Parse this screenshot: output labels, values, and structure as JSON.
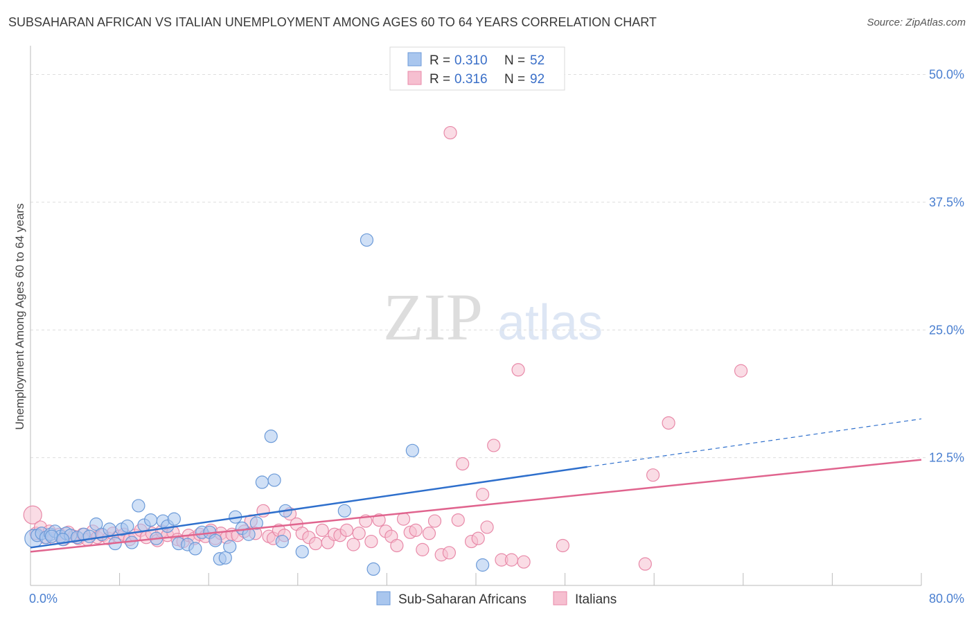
{
  "title": "SUBSAHARAN AFRICAN VS ITALIAN UNEMPLOYMENT AMONG AGES 60 TO 64 YEARS CORRELATION CHART",
  "source": "Source: ZipAtlas.com",
  "watermark": {
    "zip": "ZIP",
    "atlas": "atlas"
  },
  "colors": {
    "blue_fill": "#a9c6ee",
    "blue_stroke": "#6b9ad8",
    "blue_line": "#2e6fcc",
    "pink_fill": "#f6bfd0",
    "pink_stroke": "#e889a8",
    "pink_line": "#e0648e",
    "grid": "#dddddd",
    "axis": "#bbbbbb",
    "tick_text": "#4a7fd0"
  },
  "legend": {
    "rows": [
      {
        "r_label": "R = ",
        "r_value": "0.310",
        "n_label": "N = ",
        "n_value": "52"
      },
      {
        "r_label": "R = ",
        "r_value": "0.316",
        "n_label": "N = ",
        "n_value": "92"
      }
    ]
  },
  "chart_data": {
    "type": "scatter",
    "title": "SUBSAHARAN AFRICAN VS ITALIAN UNEMPLOYMENT AMONG AGES 60 TO 64 YEARS CORRELATION CHART",
    "xlabel": "",
    "ylabel": "Unemployment Among Ages 60 to 64 years",
    "xlim": [
      0,
      80
    ],
    "ylim": [
      0,
      52
    ],
    "x_tick_labels": [
      "0.0%",
      "80.0%"
    ],
    "y_ticks": [
      12.5,
      25.0,
      37.5,
      50.0
    ],
    "y_tick_labels": [
      "12.5%",
      "25.0%",
      "37.5%",
      "50.0%"
    ],
    "grid": true,
    "legend_position": "top-center",
    "series": [
      {
        "name": "Sub-Saharan Africans",
        "color": "#a9c6ee",
        "trend": {
          "x0": 0,
          "y0": 3.7,
          "x1": 50,
          "y1": 11.6,
          "dashed_to_x": 80,
          "dashed_to_y": 16.3
        },
        "points": [
          [
            0.3,
            4.6
          ],
          [
            0.6,
            4.9
          ],
          [
            1.0,
            5.1
          ],
          [
            1.4,
            4.7
          ],
          [
            1.8,
            5.0
          ],
          [
            2.2,
            5.3
          ],
          [
            2.7,
            4.8
          ],
          [
            3.2,
            5.1
          ],
          [
            3.6,
            4.9
          ],
          [
            4.2,
            4.7
          ],
          [
            4.8,
            5.0
          ],
          [
            5.3,
            4.8
          ],
          [
            5.9,
            6.0
          ],
          [
            6.4,
            5.0
          ],
          [
            7.1,
            5.5
          ],
          [
            7.6,
            4.1
          ],
          [
            8.2,
            5.5
          ],
          [
            8.7,
            5.8
          ],
          [
            9.1,
            4.2
          ],
          [
            9.7,
            7.8
          ],
          [
            10.2,
            5.9
          ],
          [
            10.8,
            6.4
          ],
          [
            11.3,
            4.6
          ],
          [
            11.9,
            6.3
          ],
          [
            12.3,
            5.8
          ],
          [
            12.9,
            6.5
          ],
          [
            13.3,
            4.1
          ],
          [
            14.1,
            4.0
          ],
          [
            14.8,
            3.6
          ],
          [
            15.4,
            5.2
          ],
          [
            16.1,
            5.2
          ],
          [
            16.6,
            4.4
          ],
          [
            17.0,
            2.6
          ],
          [
            17.5,
            2.7
          ],
          [
            17.9,
            3.8
          ],
          [
            18.4,
            6.7
          ],
          [
            19.0,
            5.6
          ],
          [
            19.6,
            5.0
          ],
          [
            20.3,
            6.1
          ],
          [
            20.8,
            10.1
          ],
          [
            21.6,
            14.6
          ],
          [
            21.9,
            10.3
          ],
          [
            22.6,
            4.3
          ],
          [
            22.9,
            7.3
          ],
          [
            24.4,
            3.3
          ],
          [
            28.2,
            7.3
          ],
          [
            30.2,
            33.8
          ],
          [
            30.8,
            1.6
          ],
          [
            34.3,
            13.2
          ],
          [
            40.6,
            2.0
          ],
          [
            1.9,
            4.8
          ],
          [
            2.9,
            4.5
          ]
        ]
      },
      {
        "name": "Italians",
        "color": "#f6bfd0",
        "trend": {
          "x0": 0,
          "y0": 3.3,
          "x1": 80,
          "y1": 12.3
        },
        "points": [
          [
            0.2,
            6.9
          ],
          [
            0.5,
            5.1
          ],
          [
            0.9,
            5.7
          ],
          [
            1.3,
            4.7
          ],
          [
            1.7,
            5.3
          ],
          [
            2.1,
            4.6
          ],
          [
            2.6,
            5.0
          ],
          [
            3.0,
            4.5
          ],
          [
            3.4,
            5.2
          ],
          [
            3.9,
            4.8
          ],
          [
            4.3,
            4.6
          ],
          [
            4.7,
            5.0
          ],
          [
            5.1,
            4.5
          ],
          [
            5.6,
            5.3
          ],
          [
            6.0,
            4.7
          ],
          [
            6.5,
            4.9
          ],
          [
            7.0,
            4.6
          ],
          [
            7.4,
            5.1
          ],
          [
            7.9,
            4.8
          ],
          [
            8.4,
            5.0
          ],
          [
            8.9,
            4.5
          ],
          [
            9.4,
            4.9
          ],
          [
            9.9,
            5.4
          ],
          [
            10.4,
            4.7
          ],
          [
            10.9,
            5.1
          ],
          [
            11.4,
            4.4
          ],
          [
            11.8,
            5.3
          ],
          [
            12.3,
            4.9
          ],
          [
            12.8,
            5.2
          ],
          [
            13.2,
            4.5
          ],
          [
            13.7,
            4.3
          ],
          [
            14.2,
            4.9
          ],
          [
            14.7,
            4.6
          ],
          [
            15.2,
            5.0
          ],
          [
            15.7,
            4.8
          ],
          [
            16.2,
            5.4
          ],
          [
            16.6,
            4.6
          ],
          [
            17.1,
            5.1
          ],
          [
            17.6,
            4.7
          ],
          [
            18.1,
            5.0
          ],
          [
            18.6,
            4.9
          ],
          [
            19.2,
            5.3
          ],
          [
            19.8,
            6.3
          ],
          [
            20.2,
            5.1
          ],
          [
            20.9,
            7.3
          ],
          [
            21.4,
            4.8
          ],
          [
            21.8,
            4.6
          ],
          [
            22.3,
            5.4
          ],
          [
            22.8,
            4.9
          ],
          [
            23.3,
            7.0
          ],
          [
            23.9,
            6.0
          ],
          [
            24.4,
            5.1
          ],
          [
            25.0,
            4.7
          ],
          [
            25.6,
            4.1
          ],
          [
            26.2,
            5.4
          ],
          [
            26.7,
            4.2
          ],
          [
            27.3,
            5.0
          ],
          [
            27.8,
            4.9
          ],
          [
            28.4,
            5.4
          ],
          [
            29.0,
            4.0
          ],
          [
            29.5,
            5.1
          ],
          [
            30.1,
            6.3
          ],
          [
            30.6,
            4.3
          ],
          [
            31.3,
            6.4
          ],
          [
            31.9,
            5.3
          ],
          [
            32.4,
            4.8
          ],
          [
            32.9,
            3.9
          ],
          [
            33.5,
            6.5
          ],
          [
            34.1,
            5.2
          ],
          [
            34.6,
            5.4
          ],
          [
            35.2,
            3.5
          ],
          [
            35.8,
            5.1
          ],
          [
            36.3,
            6.3
          ],
          [
            36.9,
            3.0
          ],
          [
            37.6,
            3.2
          ],
          [
            37.7,
            44.3
          ],
          [
            38.4,
            6.4
          ],
          [
            38.8,
            11.9
          ],
          [
            39.6,
            4.3
          ],
          [
            40.2,
            4.6
          ],
          [
            40.6,
            8.9
          ],
          [
            41.0,
            5.7
          ],
          [
            41.6,
            13.7
          ],
          [
            42.3,
            2.5
          ],
          [
            43.2,
            2.5
          ],
          [
            43.8,
            21.1
          ],
          [
            44.3,
            2.3
          ],
          [
            47.8,
            3.9
          ],
          [
            55.2,
            2.1
          ],
          [
            55.9,
            10.8
          ],
          [
            57.3,
            15.9
          ],
          [
            63.8,
            21.0
          ]
        ]
      }
    ]
  },
  "bottom_legend": {
    "items": [
      "Sub-Saharan Africans",
      "Italians"
    ]
  }
}
